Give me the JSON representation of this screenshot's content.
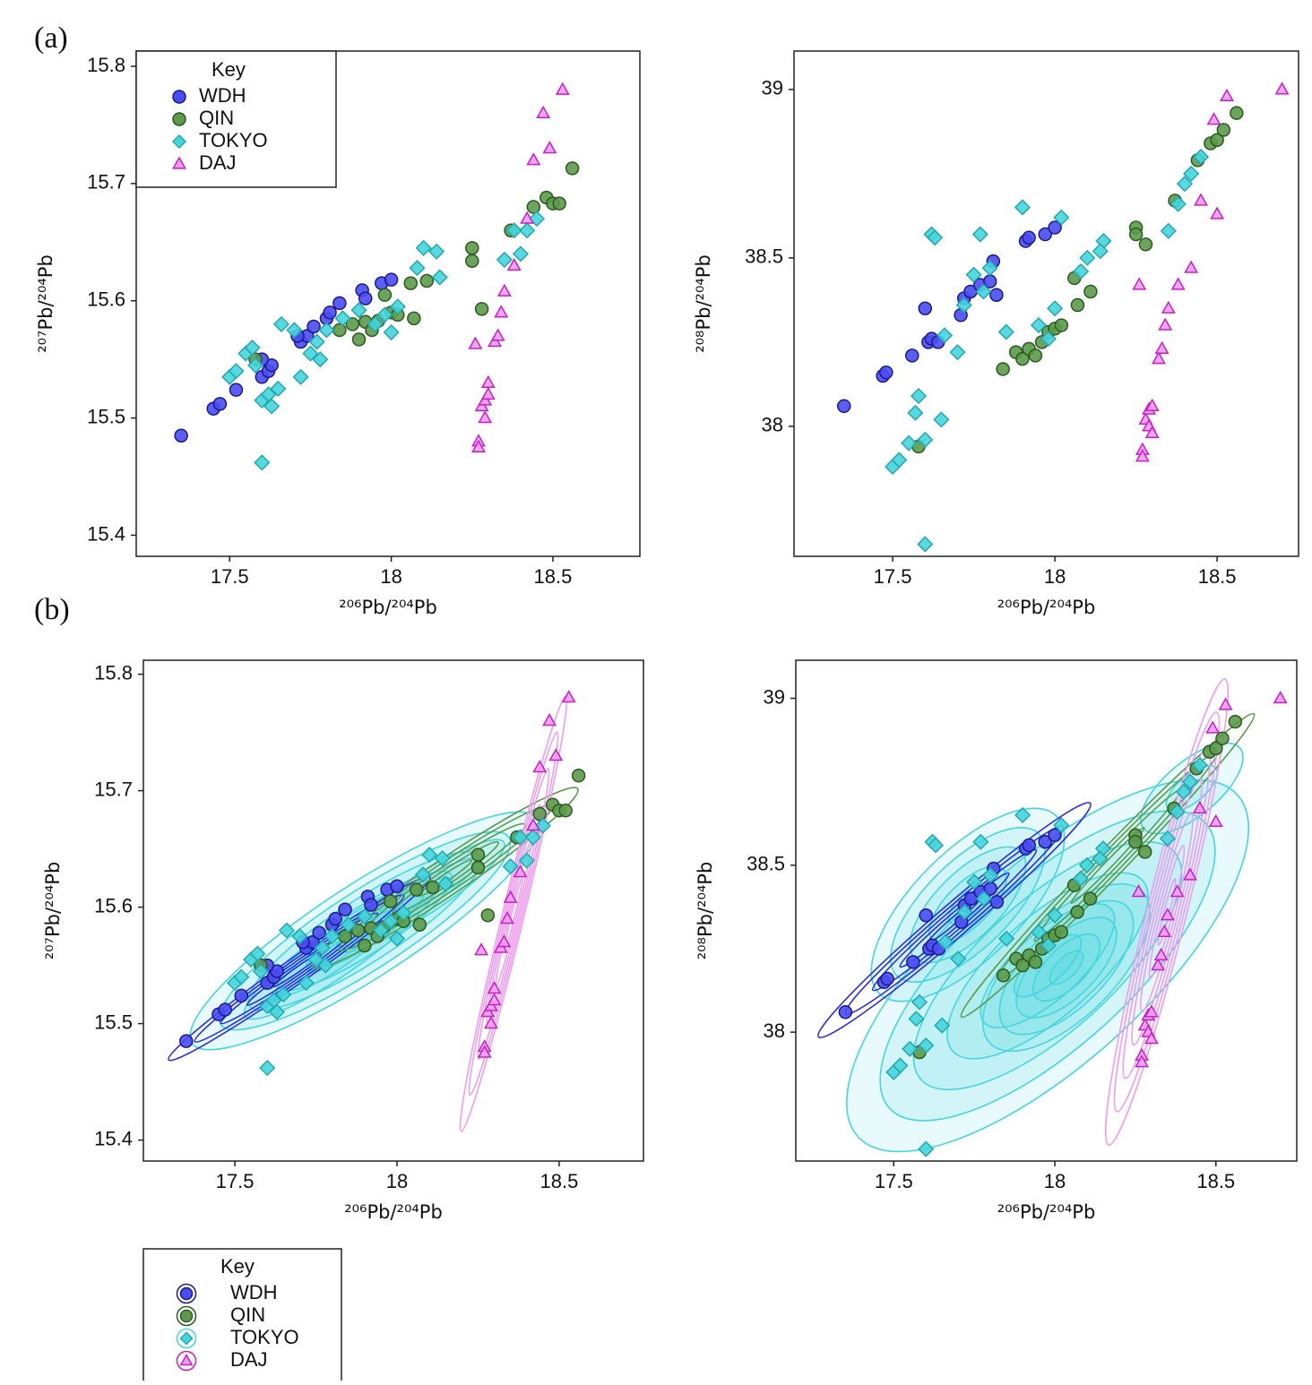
{
  "chart_data": [
    {
      "type": "scatter",
      "panel_label": "(a)",
      "xlabel": "²⁰⁶Pb/²⁰⁴Pb",
      "ylabel": "²⁰⁷Pb/²⁰⁴Pb",
      "xlim": [
        17.211,
        18.769
      ],
      "ylim": [
        15.382,
        15.813
      ],
      "xticks": [
        17.5,
        18,
        18.5
      ],
      "yticks": [
        15.4,
        15.5,
        15.6,
        15.7,
        15.8
      ],
      "legend": "upper left",
      "legend_title": "Key",
      "series": [
        {
          "name": "WDH",
          "marker": "circle",
          "color": "#4a4cf0",
          "edgecolor": "#1a1a90",
          "x": [
            17.35,
            17.45,
            17.47,
            17.52,
            17.6,
            17.62,
            17.63,
            17.6,
            17.72,
            17.74,
            17.76,
            17.8,
            17.81,
            17.84,
            17.91,
            17.92,
            17.97,
            18.0,
            17.71
          ],
          "y": [
            15.485,
            15.508,
            15.512,
            15.524,
            15.535,
            15.54,
            15.545,
            15.55,
            15.565,
            15.57,
            15.578,
            15.585,
            15.59,
            15.598,
            15.609,
            15.602,
            15.615,
            15.618,
            15.57
          ]
        },
        {
          "name": "QIN",
          "marker": "circle",
          "color": "#5d9a4a",
          "edgecolor": "#2a5a20",
          "x": [
            17.58,
            17.84,
            17.88,
            17.9,
            17.92,
            17.94,
            17.96,
            17.98,
            18.0,
            18.02,
            18.06,
            18.07,
            18.11,
            18.25,
            18.25,
            18.28,
            18.37,
            18.44,
            18.48,
            18.5,
            18.52,
            18.56
          ],
          "y": [
            15.55,
            15.575,
            15.58,
            15.567,
            15.582,
            15.575,
            15.583,
            15.605,
            15.59,
            15.588,
            15.615,
            15.585,
            15.617,
            15.645,
            15.634,
            15.593,
            15.66,
            15.68,
            15.688,
            15.683,
            15.683,
            15.713
          ]
        },
        {
          "name": "TOKYO",
          "marker": "diamond",
          "color": "#45d6dc",
          "edgecolor": "#22a8b0",
          "x": [
            17.5,
            17.52,
            17.55,
            17.57,
            17.58,
            17.6,
            17.6,
            17.62,
            17.63,
            17.65,
            17.66,
            17.7,
            17.72,
            17.75,
            17.77,
            17.78,
            17.8,
            17.85,
            17.9,
            17.95,
            17.98,
            18.0,
            18.02,
            18.08,
            18.1,
            18.15,
            18.14,
            18.35,
            18.38,
            18.4,
            18.42,
            18.45
          ],
          "y": [
            15.535,
            15.54,
            15.555,
            15.56,
            15.545,
            15.462,
            15.515,
            15.52,
            15.51,
            15.525,
            15.58,
            15.575,
            15.535,
            15.555,
            15.565,
            15.55,
            15.575,
            15.585,
            15.592,
            15.58,
            15.588,
            15.573,
            15.595,
            15.628,
            15.645,
            15.62,
            15.642,
            15.635,
            15.66,
            15.64,
            15.66,
            15.67
          ]
        },
        {
          "name": "DAJ",
          "marker": "triangle",
          "color": "#ee9cee",
          "edgecolor": "#c81ec8",
          "x": [
            18.26,
            18.27,
            18.27,
            18.28,
            18.29,
            18.29,
            18.3,
            18.3,
            18.32,
            18.33,
            18.34,
            18.35,
            18.38,
            18.42,
            18.44,
            18.47,
            18.49,
            18.53
          ],
          "y": [
            15.563,
            15.48,
            15.475,
            15.51,
            15.5,
            15.515,
            15.52,
            15.53,
            15.565,
            15.57,
            15.59,
            15.608,
            15.63,
            15.67,
            15.72,
            15.76,
            15.73,
            15.78
          ]
        }
      ]
    },
    {
      "type": "scatter",
      "xlabel": "²⁰⁶Pb/²⁰⁴Pb",
      "ylabel": "²⁰⁸Pb/²⁰⁴Pb",
      "xlim": [
        17.196,
        18.751
      ],
      "ylim": [
        37.614,
        39.114
      ],
      "xticks": [
        17.5,
        18,
        18.5
      ],
      "yticks": [
        38,
        38.5,
        39
      ],
      "series": [
        {
          "name": "WDH",
          "marker": "circle",
          "color": "#4a4cf0",
          "edgecolor": "#1a1a90",
          "x": [
            17.35,
            17.47,
            17.48,
            17.56,
            17.61,
            17.62,
            17.64,
            17.6,
            17.72,
            17.74,
            17.77,
            17.8,
            17.81,
            17.82,
            17.91,
            17.92,
            17.97,
            18.0,
            17.71
          ],
          "y": [
            38.06,
            38.15,
            38.16,
            38.21,
            38.25,
            38.26,
            38.25,
            38.35,
            38.38,
            38.4,
            38.42,
            38.43,
            38.49,
            38.39,
            38.55,
            38.56,
            38.57,
            38.59,
            38.33
          ]
        },
        {
          "name": "QIN",
          "marker": "circle",
          "color": "#5d9a4a",
          "edgecolor": "#2a5a20",
          "x": [
            17.58,
            17.84,
            17.88,
            17.9,
            17.92,
            17.94,
            17.96,
            17.98,
            18.0,
            18.02,
            18.06,
            18.07,
            18.11,
            18.25,
            18.25,
            18.28,
            18.37,
            18.44,
            18.48,
            18.5,
            18.52,
            18.56
          ],
          "y": [
            37.94,
            38.17,
            38.22,
            38.2,
            38.23,
            38.21,
            38.25,
            38.28,
            38.29,
            38.3,
            38.44,
            38.36,
            38.4,
            38.59,
            38.57,
            38.54,
            38.67,
            38.79,
            38.84,
            38.85,
            38.88,
            38.93
          ]
        },
        {
          "name": "TOKYO",
          "marker": "diamond",
          "color": "#45d6dc",
          "edgecolor": "#22a8b0",
          "x": [
            17.5,
            17.52,
            17.55,
            17.57,
            17.58,
            17.6,
            17.6,
            17.62,
            17.63,
            17.65,
            17.66,
            17.7,
            17.72,
            17.75,
            17.77,
            17.78,
            17.8,
            17.85,
            17.9,
            17.95,
            17.98,
            18.0,
            18.02,
            18.08,
            18.1,
            18.15,
            18.14,
            18.35,
            18.38,
            18.4,
            18.42,
            18.45
          ],
          "y": [
            37.88,
            37.9,
            37.95,
            38.04,
            38.09,
            37.65,
            37.96,
            38.57,
            38.56,
            38.02,
            38.27,
            38.22,
            38.36,
            38.45,
            38.57,
            38.4,
            38.47,
            38.28,
            38.65,
            38.3,
            38.26,
            38.35,
            38.62,
            38.46,
            38.5,
            38.55,
            38.52,
            38.58,
            38.66,
            38.72,
            38.75,
            38.8
          ]
        },
        {
          "name": "DAJ",
          "marker": "triangle",
          "color": "#ee9cee",
          "edgecolor": "#c81ec8",
          "x": [
            18.26,
            18.27,
            18.27,
            18.28,
            18.29,
            18.29,
            18.3,
            18.3,
            18.32,
            18.33,
            18.34,
            18.35,
            18.38,
            18.42,
            18.45,
            18.49,
            18.5,
            18.53,
            18.7
          ],
          "y": [
            38.42,
            37.93,
            37.91,
            38.02,
            38.0,
            38.05,
            38.06,
            37.98,
            38.2,
            38.23,
            38.3,
            38.35,
            38.42,
            38.47,
            38.67,
            38.91,
            38.63,
            38.98,
            39.0
          ]
        }
      ]
    },
    {
      "type": "scatter",
      "panel_label": "(b)",
      "xlabel": "²⁰⁶Pb/²⁰⁴Pb",
      "ylabel": "²⁰⁷Pb/²⁰⁴Pb",
      "contours": true,
      "xlim": [
        17.218,
        18.76
      ],
      "ylim": [
        15.382,
        15.812
      ],
      "xticks": [
        17.5,
        18,
        18.5
      ],
      "yticks": [
        15.4,
        15.5,
        15.6,
        15.7,
        15.8
      ],
      "legend": "below",
      "legend_title": "Key",
      "series": [
        {
          "name": "WDH",
          "marker": "circle",
          "color": "#4a4cf0",
          "edgecolor": "#1a1a90",
          "x": [
            17.35,
            17.45,
            17.47,
            17.52,
            17.6,
            17.62,
            17.63,
            17.6,
            17.72,
            17.74,
            17.76,
            17.8,
            17.81,
            17.84,
            17.91,
            17.92,
            17.97,
            18.0,
            17.71
          ],
          "y": [
            15.485,
            15.508,
            15.512,
            15.524,
            15.535,
            15.54,
            15.545,
            15.55,
            15.565,
            15.57,
            15.578,
            15.585,
            15.59,
            15.598,
            15.609,
            15.602,
            15.615,
            15.618,
            15.57
          ]
        },
        {
          "name": "QIN",
          "marker": "circle",
          "color": "#5d9a4a",
          "edgecolor": "#2a5a20",
          "x": [
            17.58,
            17.84,
            17.88,
            17.9,
            17.92,
            17.94,
            17.96,
            17.98,
            18.0,
            18.02,
            18.06,
            18.07,
            18.11,
            18.25,
            18.25,
            18.28,
            18.37,
            18.44,
            18.48,
            18.5,
            18.52,
            18.56
          ],
          "y": [
            15.55,
            15.575,
            15.58,
            15.567,
            15.582,
            15.575,
            15.583,
            15.605,
            15.59,
            15.588,
            15.615,
            15.585,
            15.617,
            15.645,
            15.634,
            15.593,
            15.66,
            15.68,
            15.688,
            15.683,
            15.683,
            15.713
          ]
        },
        {
          "name": "TOKYO",
          "marker": "diamond",
          "color": "#45d6dc",
          "edgecolor": "#22a8b0",
          "x": [
            17.5,
            17.52,
            17.55,
            17.57,
            17.58,
            17.6,
            17.6,
            17.62,
            17.63,
            17.65,
            17.66,
            17.7,
            17.72,
            17.75,
            17.77,
            17.78,
            17.8,
            17.85,
            17.9,
            17.95,
            17.98,
            18.0,
            18.02,
            18.08,
            18.1,
            18.15,
            18.14,
            18.35,
            18.38,
            18.4,
            18.42,
            18.45
          ],
          "y": [
            15.535,
            15.54,
            15.555,
            15.56,
            15.545,
            15.462,
            15.515,
            15.52,
            15.51,
            15.525,
            15.58,
            15.575,
            15.535,
            15.555,
            15.565,
            15.55,
            15.575,
            15.585,
            15.592,
            15.58,
            15.588,
            15.573,
            15.595,
            15.628,
            15.645,
            15.62,
            15.642,
            15.635,
            15.66,
            15.64,
            15.66,
            15.67
          ]
        },
        {
          "name": "DAJ",
          "marker": "triangle",
          "color": "#ee9cee",
          "edgecolor": "#c81ec8",
          "x": [
            18.26,
            18.27,
            18.27,
            18.28,
            18.29,
            18.29,
            18.3,
            18.3,
            18.32,
            18.33,
            18.34,
            18.35,
            18.38,
            18.42,
            18.44,
            18.47,
            18.49,
            18.53
          ],
          "y": [
            15.563,
            15.48,
            15.475,
            15.51,
            15.5,
            15.515,
            15.52,
            15.53,
            15.565,
            15.57,
            15.59,
            15.608,
            15.63,
            15.67,
            15.72,
            15.76,
            15.73,
            15.78
          ]
        }
      ]
    },
    {
      "type": "scatter",
      "xlabel": "²⁰⁶Pb/²⁰⁴Pb",
      "ylabel": "²⁰⁸Pb/²⁰⁴Pb",
      "contours": true,
      "xlim": [
        17.196,
        18.751
      ],
      "ylim": [
        37.614,
        39.114
      ],
      "xticks": [
        17.5,
        18,
        18.5
      ],
      "yticks": [
        38,
        38.5,
        39
      ],
      "series": [
        {
          "name": "WDH",
          "marker": "circle",
          "color": "#4a4cf0",
          "edgecolor": "#1a1a90",
          "x": [
            17.35,
            17.47,
            17.48,
            17.56,
            17.61,
            17.62,
            17.64,
            17.6,
            17.72,
            17.74,
            17.77,
            17.8,
            17.81,
            17.82,
            17.91,
            17.92,
            17.97,
            18.0,
            17.71
          ],
          "y": [
            38.06,
            38.15,
            38.16,
            38.21,
            38.25,
            38.26,
            38.25,
            38.35,
            38.38,
            38.4,
            38.42,
            38.43,
            38.49,
            38.39,
            38.55,
            38.56,
            38.57,
            38.59,
            38.33
          ]
        },
        {
          "name": "QIN",
          "marker": "circle",
          "color": "#5d9a4a",
          "edgecolor": "#2a5a20",
          "x": [
            17.58,
            17.84,
            17.88,
            17.9,
            17.92,
            17.94,
            17.96,
            17.98,
            18.0,
            18.02,
            18.06,
            18.07,
            18.11,
            18.25,
            18.25,
            18.28,
            18.37,
            18.44,
            18.48,
            18.5,
            18.52,
            18.56
          ],
          "y": [
            37.94,
            38.17,
            38.22,
            38.2,
            38.23,
            38.21,
            38.25,
            38.28,
            38.29,
            38.3,
            38.44,
            38.36,
            38.4,
            38.59,
            38.57,
            38.54,
            38.67,
            38.79,
            38.84,
            38.85,
            38.88,
            38.93
          ]
        },
        {
          "name": "TOKYO",
          "marker": "diamond",
          "color": "#45d6dc",
          "edgecolor": "#22a8b0",
          "x": [
            17.5,
            17.52,
            17.55,
            17.57,
            17.58,
            17.6,
            17.6,
            17.62,
            17.63,
            17.65,
            17.66,
            17.7,
            17.72,
            17.75,
            17.77,
            17.78,
            17.8,
            17.85,
            17.9,
            17.95,
            17.98,
            18.0,
            18.02,
            18.08,
            18.1,
            18.15,
            18.14,
            18.35,
            18.38,
            18.4,
            18.42,
            18.45
          ],
          "y": [
            37.88,
            37.9,
            37.95,
            38.04,
            38.09,
            37.65,
            37.96,
            38.57,
            38.56,
            38.02,
            38.27,
            38.22,
            38.36,
            38.45,
            38.57,
            38.4,
            38.47,
            38.28,
            38.65,
            38.3,
            38.26,
            38.35,
            38.62,
            38.46,
            38.5,
            38.55,
            38.52,
            38.58,
            38.66,
            38.72,
            38.75,
            38.8
          ]
        },
        {
          "name": "DAJ",
          "marker": "triangle",
          "color": "#ee9cee",
          "edgecolor": "#c81ec8",
          "x": [
            18.26,
            18.27,
            18.27,
            18.28,
            18.29,
            18.29,
            18.3,
            18.3,
            18.32,
            18.33,
            18.34,
            18.35,
            18.38,
            18.42,
            18.45,
            18.49,
            18.5,
            18.53,
            18.7
          ],
          "y": [
            38.42,
            37.93,
            37.91,
            38.02,
            38.0,
            38.05,
            38.06,
            37.98,
            38.2,
            38.23,
            38.3,
            38.35,
            38.42,
            38.47,
            38.67,
            38.91,
            38.63,
            38.98,
            39.0
          ]
        }
      ]
    }
  ]
}
